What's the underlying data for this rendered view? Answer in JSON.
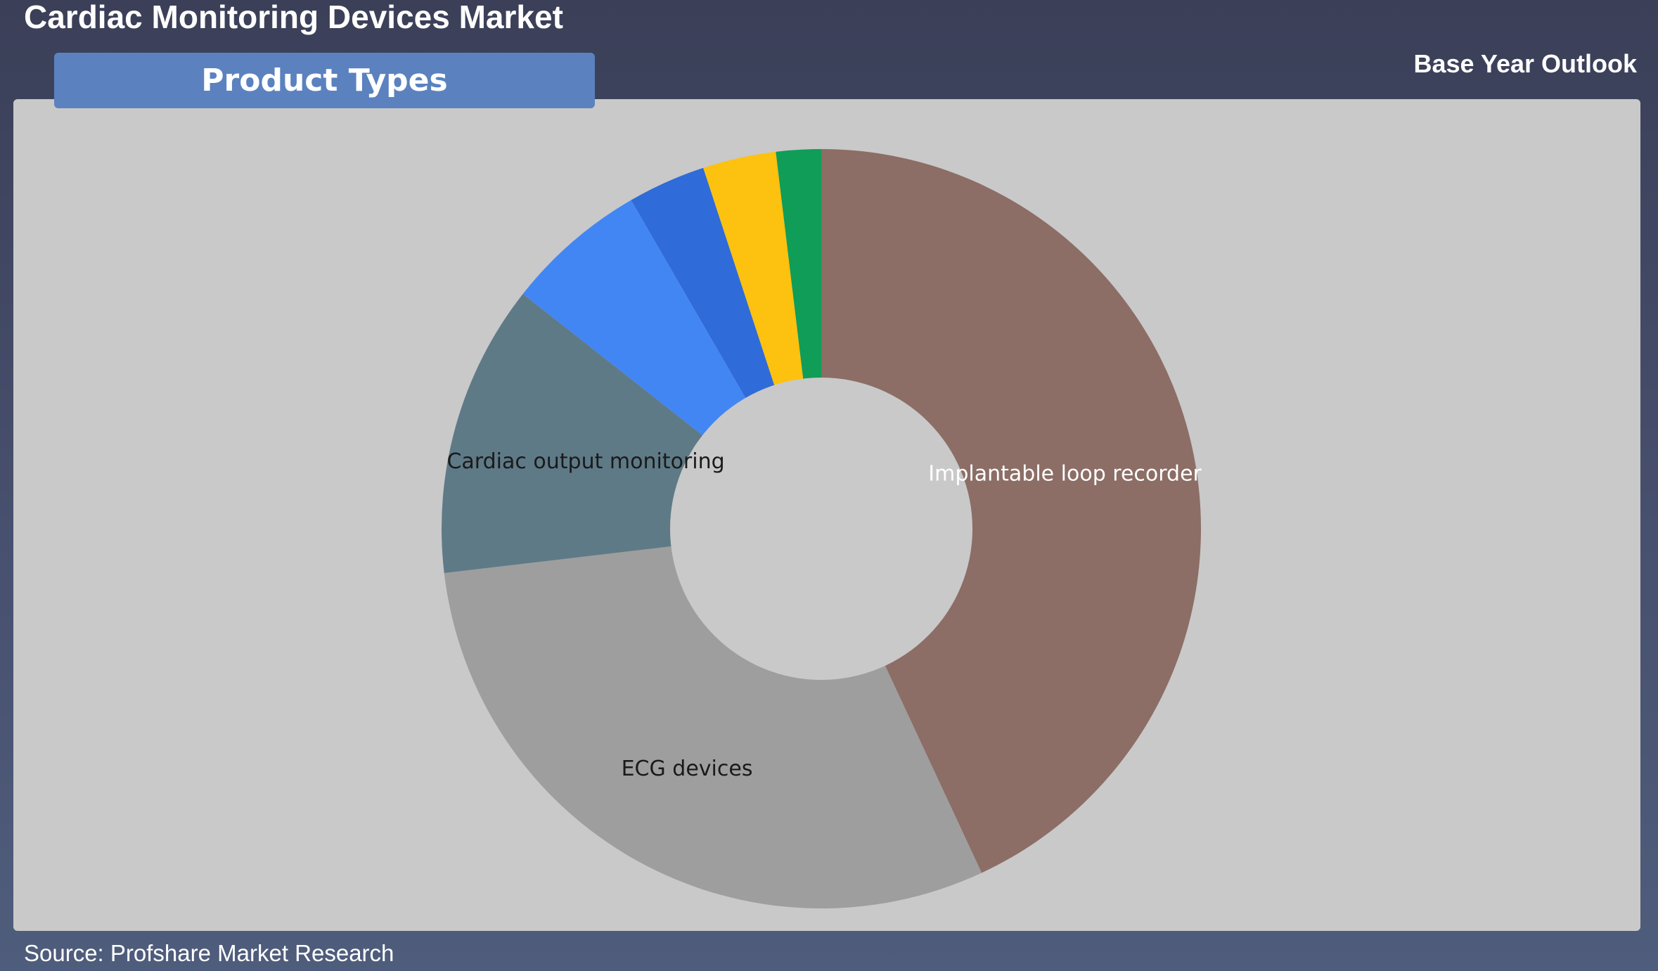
{
  "page": {
    "title": "Cardiac Monitoring Devices Market",
    "outlook": "Base Year Outlook",
    "tab": "Product Types",
    "source": "Source: Profshare Market Research"
  },
  "chart_data": {
    "type": "pie",
    "variant": "donut",
    "title": "",
    "legend": "none",
    "categories": [
      "Implantable loop recorder",
      "ECG devices",
      "Cardiac output monitoring",
      "",
      "",
      "",
      ""
    ],
    "values": [
      42.8,
      29.9,
      12.4,
      6.0,
      3.3,
      3.1,
      1.9
    ],
    "unit": "%",
    "colors": [
      "#8c6e66",
      "#9e9e9e",
      "#5f7a87",
      "#4286f4",
      "#2f6bd9",
      "#fdc10f",
      "#0f9d58"
    ],
    "label_colors": [
      "#ffffff",
      "#1a1a1a",
      "#1a1a1a",
      "",
      "",
      "",
      ""
    ]
  }
}
